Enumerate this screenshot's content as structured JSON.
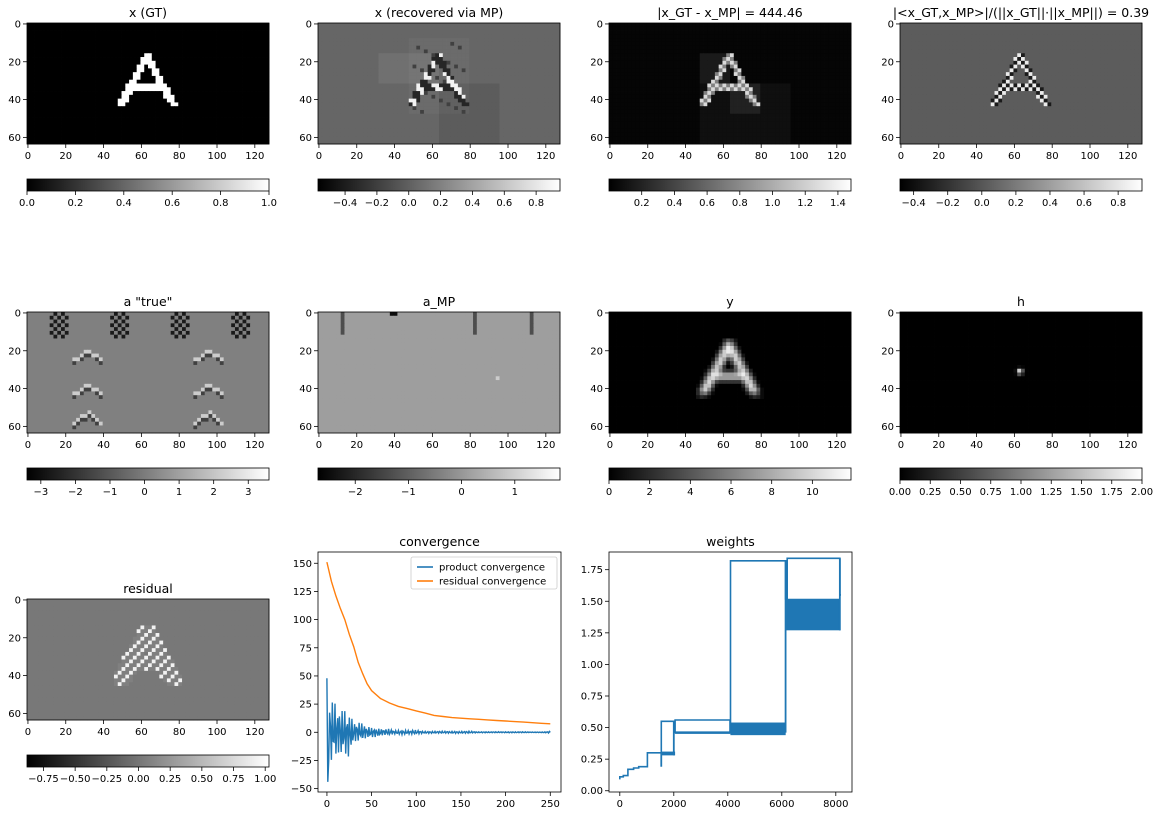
{
  "figure": {
    "panels": [
      {
        "id": "xgt",
        "title": "x (GT)",
        "cbar": {
          "min": 0.0,
          "max": 1.0,
          "ticks": [
            "0.0",
            "0.2",
            "0.4",
            "0.6",
            "0.8",
            "1.0"
          ],
          "tick_values": [
            0,
            0.2,
            0.4,
            0.6,
            0.8,
            1.0
          ]
        }
      },
      {
        "id": "xmp",
        "title": "x (recovered via MP)",
        "cbar": {
          "min": -0.57,
          "max": 0.95,
          "ticks": [
            "−0.4",
            "−0.2",
            "0.0",
            "0.2",
            "0.4",
            "0.6",
            "0.8"
          ],
          "tick_values": [
            -0.4,
            -0.2,
            0,
            0.2,
            0.4,
            0.6,
            0.8
          ]
        }
      },
      {
        "id": "diff",
        "title": "|x_GT - x_MP| = 444.46",
        "cbar": {
          "min": 0.0,
          "max": 1.48,
          "ticks": [
            "0.2",
            "0.4",
            "0.6",
            "0.8",
            "1.0",
            "1.2",
            "1.4"
          ],
          "tick_values": [
            0.2,
            0.4,
            0.6,
            0.8,
            1.0,
            1.2,
            1.4
          ]
        }
      },
      {
        "id": "corr",
        "title": "|<x_GT,x_MP>|/(||x_GT||·||x_MP||) = 0.39",
        "cbar": {
          "min": -0.48,
          "max": 0.94,
          "ticks": [
            "−0.4",
            "−0.2",
            "0.0",
            "0.2",
            "0.4",
            "0.6",
            "0.8"
          ],
          "tick_values": [
            -0.4,
            -0.2,
            0,
            0.2,
            0.4,
            0.6,
            0.8
          ]
        }
      },
      {
        "id": "atrue",
        "title": "a \"true\"",
        "cbar": {
          "min": -3.4,
          "max": 3.6,
          "ticks": [
            "−3",
            "−2",
            "−1",
            "0",
            "1",
            "2",
            "3"
          ],
          "tick_values": [
            -3,
            -2,
            -1,
            0,
            1,
            2,
            3
          ]
        }
      },
      {
        "id": "amp",
        "title": "a_MP",
        "cbar": {
          "min": -2.7,
          "max": 1.85,
          "ticks": [
            "−2",
            "−1",
            "0",
            "1"
          ],
          "tick_values": [
            -2,
            -1,
            0,
            1
          ]
        }
      },
      {
        "id": "y",
        "title": "y",
        "cbar": {
          "min": 0,
          "max": 11.9,
          "ticks": [
            "0",
            "2",
            "4",
            "6",
            "8",
            "10"
          ],
          "tick_values": [
            0,
            2,
            4,
            6,
            8,
            10
          ]
        }
      },
      {
        "id": "h",
        "title": "h",
        "cbar": {
          "min": 0.0,
          "max": 2.0,
          "ticks": [
            "0.00",
            "0.25",
            "0.50",
            "0.75",
            "1.00",
            "1.25",
            "1.50",
            "1.75",
            "2.00"
          ],
          "tick_values": [
            0,
            0.25,
            0.5,
            0.75,
            1.0,
            1.25,
            1.5,
            1.75,
            2.0
          ]
        }
      },
      {
        "id": "resid",
        "title": "residual",
        "cbar": {
          "min": -0.88,
          "max": 1.03,
          "ticks": [
            "−0.75",
            "−0.50",
            "−0.25",
            "0.00",
            "0.25",
            "0.50",
            "0.75",
            "1.00"
          ],
          "tick_values": [
            -0.75,
            -0.5,
            -0.25,
            0,
            0.25,
            0.5,
            0.75,
            1.0
          ]
        }
      }
    ],
    "image_axes": {
      "x_ticks": [
        "0",
        "20",
        "40",
        "60",
        "80",
        "100",
        "120"
      ],
      "x_tick_values": [
        0,
        20,
        40,
        60,
        80,
        100,
        120
      ],
      "y_ticks": [
        "0",
        "20",
        "40",
        "60"
      ],
      "y_tick_values": [
        0,
        20,
        40,
        60
      ],
      "width": 128,
      "height": 64
    }
  },
  "chart_data": [
    {
      "type": "heatmap",
      "title": "x (GT)",
      "shape": [
        64,
        128
      ],
      "colormap": "gray",
      "vmin": 0.0,
      "vmax": 1.0,
      "content": "A"
    },
    {
      "type": "heatmap",
      "title": "x (recovered via MP)",
      "shape": [
        64,
        128
      ],
      "colormap": "gray",
      "vmin": -0.57,
      "vmax": 0.95
    },
    {
      "type": "heatmap",
      "title": "|x_GT - x_MP| = 444.46",
      "shape": [
        64,
        128
      ],
      "colormap": "gray",
      "vmin": 0.0,
      "vmax": 1.48
    },
    {
      "type": "heatmap",
      "title": "|<x_GT,x_MP>|/(||x_GT||·||x_MP||) = 0.39",
      "shape": [
        64,
        128
      ],
      "colormap": "gray",
      "vmin": -0.48,
      "vmax": 0.94
    },
    {
      "type": "heatmap",
      "title": "a \"true\"",
      "shape": [
        64,
        128
      ],
      "colormap": "gray",
      "vmin": -3.4,
      "vmax": 3.6
    },
    {
      "type": "heatmap",
      "title": "a_MP",
      "shape": [
        64,
        128
      ],
      "colormap": "gray",
      "vmin": -2.7,
      "vmax": 1.85
    },
    {
      "type": "heatmap",
      "title": "y",
      "shape": [
        64,
        128
      ],
      "colormap": "gray",
      "vmin": 0,
      "vmax": 11.9
    },
    {
      "type": "heatmap",
      "title": "h",
      "shape": [
        64,
        128
      ],
      "colormap": "gray",
      "vmin": 0.0,
      "vmax": 2.0,
      "peak": [
        63,
        31
      ]
    },
    {
      "type": "heatmap",
      "title": "residual",
      "shape": [
        64,
        128
      ],
      "colormap": "gray",
      "vmin": -0.88,
      "vmax": 1.03
    },
    {
      "type": "line",
      "title": "convergence",
      "xlim": [
        -10,
        262
      ],
      "ylim": [
        -53,
        160
      ],
      "x_ticks": [
        "0",
        "50",
        "100",
        "150",
        "200",
        "250"
      ],
      "x_tick_values": [
        0,
        50,
        100,
        150,
        200,
        250
      ],
      "y_ticks": [
        "−50",
        "−25",
        "0",
        "25",
        "50",
        "75",
        "100",
        "125",
        "150"
      ],
      "y_tick_values": [
        -50,
        -25,
        0,
        25,
        50,
        75,
        100,
        125,
        150
      ],
      "legend_position": "top-right",
      "series": [
        {
          "name": "product convergence",
          "color": "#1f77b4",
          "x": [
            0,
            1,
            2,
            3,
            4,
            5,
            6,
            8,
            10,
            12,
            14,
            16,
            18,
            20,
            22,
            24,
            26,
            28,
            30,
            32,
            35,
            38,
            41,
            44,
            47,
            50,
            55,
            60,
            65,
            70,
            75,
            80,
            90,
            100,
            110,
            120,
            130,
            140,
            150,
            160,
            170,
            180,
            190,
            200,
            210,
            220,
            230,
            240,
            250
          ],
          "y": [
            48,
            -44,
            32,
            -30,
            30,
            -35,
            28,
            -25,
            28,
            -20,
            25,
            -28,
            20,
            -26,
            15,
            -22,
            18,
            -15,
            12,
            -10,
            10,
            -8,
            8,
            -6,
            6,
            -5,
            4,
            -4,
            3,
            -3,
            2,
            -2,
            2,
            -2,
            1,
            -1,
            1,
            -1,
            1,
            -1,
            0.5,
            -0.5,
            0.5,
            -0.5,
            0.5,
            -0.5,
            0.3,
            -0.3,
            -1
          ]
        },
        {
          "name": "residual convergence",
          "color": "#ff7f0e",
          "x": [
            0,
            5,
            10,
            15,
            20,
            25,
            30,
            35,
            40,
            45,
            50,
            60,
            70,
            80,
            90,
            100,
            110,
            120,
            130,
            140,
            150,
            160,
            170,
            180,
            190,
            200,
            210,
            220,
            230,
            240,
            250
          ],
          "y": [
            151,
            134,
            121,
            110,
            100,
            87,
            76,
            62,
            52,
            43,
            37,
            30,
            26,
            23,
            21,
            19,
            17,
            15,
            14,
            13,
            12.5,
            12,
            11.5,
            11,
            10.5,
            10,
            9.5,
            9,
            8.5,
            8,
            7.5
          ]
        }
      ]
    },
    {
      "type": "line",
      "title": "weights",
      "xlim": [
        -400,
        8600
      ],
      "ylim": [
        -0.01,
        1.89
      ],
      "x_ticks": [
        "0",
        "2000",
        "4000",
        "6000",
        "8000"
      ],
      "x_tick_values": [
        0,
        2000,
        4000,
        6000,
        8000
      ],
      "y_ticks": [
        "0.00",
        "0.25",
        "0.50",
        "0.75",
        "1.00",
        "1.25",
        "1.50",
        "1.75"
      ],
      "y_tick_values": [
        0,
        0.25,
        0.5,
        0.75,
        1.0,
        1.25,
        1.5,
        1.75
      ],
      "series": [
        {
          "name": "",
          "color": "#1f77b4",
          "steps": [
            [
              0,
              0.09
            ],
            [
              128,
              0.11
            ],
            [
              300,
              0.12
            ],
            [
              512,
              0.17
            ],
            [
              700,
              0.18
            ],
            [
              1024,
              0.19
            ],
            [
              1536,
              0.3
            ],
            [
              2000,
              0.55
            ],
            [
              2048,
              0.46
            ],
            [
              4080,
              0.56
            ],
            [
              4100,
              0.46
            ],
            [
              6140,
              1.82
            ],
            [
              6200,
              1.52
            ],
            [
              8150,
              1.84
            ],
            [
              8192,
              1.55
            ]
          ],
          "bands": [
            [
              1536,
              2048,
              0.28,
              0.31
            ],
            [
              2048,
              4096,
              0.45,
              0.47
            ],
            [
              4096,
              6144,
              0.44,
              0.54
            ],
            [
              6160,
              8170,
              1.27,
              1.52
            ]
          ]
        }
      ]
    }
  ]
}
